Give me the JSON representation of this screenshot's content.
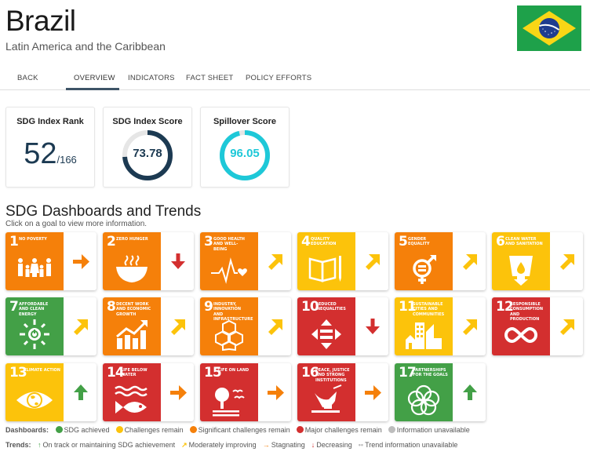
{
  "header": {
    "title": "Brazil",
    "region": "Latin America and the Caribbean",
    "flag_icon": "brazil-flag"
  },
  "tabs": [
    {
      "label": "BACK",
      "active": false
    },
    {
      "label": "OVERVIEW",
      "active": true
    },
    {
      "label": "INDICATORS",
      "active": false
    },
    {
      "label": "FACT SHEET",
      "active": false
    },
    {
      "label": "POLICY EFFORTS",
      "active": false
    }
  ],
  "cards": {
    "rank": {
      "title": "SDG Index Rank",
      "value": "52",
      "total": "/166"
    },
    "score": {
      "title": "SDG Index Score",
      "value": "73.78",
      "percent": 73.78,
      "color": "#1c3a52"
    },
    "spillover": {
      "title": "Spillover Score",
      "value": "96.05",
      "percent": 96.05,
      "color": "#1ec8d8"
    }
  },
  "section": {
    "title": "SDG Dashboards and Trends",
    "subtitle": "Click on a goal to view more information."
  },
  "colors": {
    "green": "#43a047",
    "yellow": "#fcc30b",
    "orange": "#f5800a",
    "red": "#d32f2f",
    "grey": "#bdbdbd"
  },
  "goals": [
    {
      "num": "1",
      "name": "No poverty",
      "status": "orange",
      "trend": "stagnating",
      "icon": "family-icon"
    },
    {
      "num": "2",
      "name": "Zero hunger",
      "status": "orange",
      "trend": "decreasing",
      "icon": "bowl-icon"
    },
    {
      "num": "3",
      "name": "Good health and well-being",
      "status": "orange",
      "trend": "moderately-improving",
      "icon": "heartbeat-icon"
    },
    {
      "num": "4",
      "name": "Quality education",
      "status": "yellow",
      "trend": "moderately-improving",
      "icon": "book-icon"
    },
    {
      "num": "5",
      "name": "Gender equality",
      "status": "orange",
      "trend": "moderately-improving",
      "icon": "gender-icon"
    },
    {
      "num": "6",
      "name": "Clean water and sanitation",
      "status": "yellow",
      "trend": "moderately-improving",
      "icon": "water-glass-icon"
    },
    {
      "num": "7",
      "name": "Affordable and clean energy",
      "status": "green",
      "trend": "moderately-improving",
      "icon": "sun-power-icon"
    },
    {
      "num": "8",
      "name": "Decent work and economic growth",
      "status": "orange",
      "trend": "moderately-improving",
      "icon": "growth-chart-icon"
    },
    {
      "num": "9",
      "name": "Industry, innovation and infrastructure",
      "status": "orange",
      "trend": "moderately-improving",
      "icon": "cubes-icon"
    },
    {
      "num": "10",
      "name": "Reduced inequalities",
      "status": "red",
      "trend": "decreasing",
      "icon": "equality-arrows-icon"
    },
    {
      "num": "11",
      "name": "Sustainable cities and communities",
      "status": "yellow",
      "trend": "moderately-improving",
      "icon": "city-icon"
    },
    {
      "num": "12",
      "name": "Responsible consumption and production",
      "status": "red",
      "trend": "moderately-improving",
      "icon": "infinity-icon"
    },
    {
      "num": "13",
      "name": "Climate action",
      "status": "yellow",
      "trend": "on-track",
      "icon": "eye-globe-icon"
    },
    {
      "num": "14",
      "name": "Life below water",
      "status": "red",
      "trend": "stagnating",
      "icon": "fish-icon"
    },
    {
      "num": "15",
      "name": "Life on land",
      "status": "red",
      "trend": "stagnating",
      "icon": "tree-birds-icon"
    },
    {
      "num": "16",
      "name": "Peace, justice and strong institutions",
      "status": "red",
      "trend": "stagnating",
      "icon": "dove-gavel-icon"
    },
    {
      "num": "17",
      "name": "Partnerships for the goals",
      "status": "green",
      "trend": "on-track",
      "icon": "rings-icon"
    }
  ],
  "legend": {
    "dashboards_label": "Dashboards:",
    "dashboards": [
      {
        "color": "#43a047",
        "label": "SDG achieved"
      },
      {
        "color": "#fcc30b",
        "label": "Challenges remain"
      },
      {
        "color": "#f5800a",
        "label": "Significant challenges remain"
      },
      {
        "color": "#d32f2f",
        "label": "Major challenges remain"
      },
      {
        "color": "#bdbdbd",
        "label": "Information unavailable"
      }
    ],
    "trends_label": "Trends:",
    "trends": [
      {
        "glyph": "↑",
        "color": "#43a047",
        "label": "On track or maintaining SDG achievement"
      },
      {
        "glyph": "↗",
        "color": "#fcc30b",
        "label": "Moderately improving"
      },
      {
        "glyph": "→",
        "color": "#f5800a",
        "label": "Stagnating"
      },
      {
        "glyph": "↓",
        "color": "#d32f2f",
        "label": "Decreasing"
      },
      {
        "glyph": "••",
        "color": "#bdbdbd",
        "label": "Trend information unavailable"
      }
    ]
  }
}
